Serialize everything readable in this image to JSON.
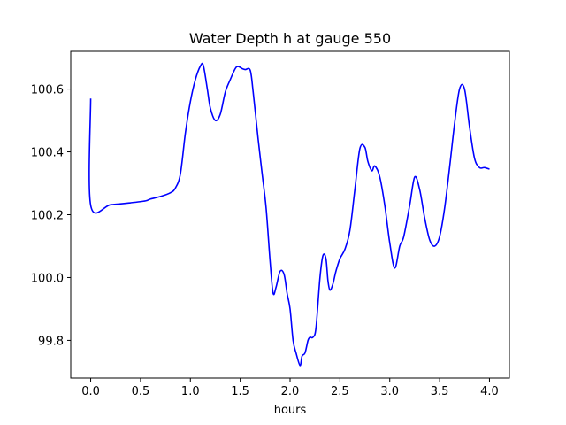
{
  "chart_data": {
    "type": "line",
    "title": "Water Depth h at gauge 550",
    "xlabel": "hours",
    "ylabel": "",
    "xlim": [
      -0.2,
      4.2
    ],
    "ylim": [
      99.68,
      100.72
    ],
    "x_ticks": [
      0.0,
      0.5,
      1.0,
      1.5,
      2.0,
      2.5,
      3.0,
      3.5,
      4.0
    ],
    "x_tick_labels": [
      "0.0",
      "0.5",
      "1.0",
      "1.5",
      "2.0",
      "2.5",
      "3.0",
      "3.5",
      "4.0"
    ],
    "y_ticks": [
      99.8,
      100.0,
      100.2,
      100.4,
      100.6
    ],
    "y_tick_labels": [
      "99.8",
      "100.0",
      "100.2",
      "100.4",
      "100.6"
    ],
    "grid": false,
    "series": [
      {
        "color": "#0000ff",
        "x": [
          0.0,
          0.0,
          0.2,
          0.4,
          0.55,
          0.6,
          0.7,
          0.8,
          0.85,
          0.9,
          0.95,
          1.0,
          1.05,
          1.1,
          1.13,
          1.17,
          1.2,
          1.25,
          1.3,
          1.35,
          1.4,
          1.45,
          1.48,
          1.52,
          1.55,
          1.6,
          1.63,
          1.68,
          1.72,
          1.76,
          1.8,
          1.83,
          1.86,
          1.9,
          1.94,
          1.97,
          2.0,
          2.03,
          2.06,
          2.1,
          2.12,
          2.15,
          2.18,
          2.2,
          2.23,
          2.26,
          2.3,
          2.33,
          2.36,
          2.38,
          2.4,
          2.43,
          2.46,
          2.5,
          2.55,
          2.6,
          2.65,
          2.7,
          2.75,
          2.78,
          2.82,
          2.85,
          2.9,
          2.95,
          3.0,
          3.05,
          3.1,
          3.14,
          3.2,
          3.25,
          3.3,
          3.35,
          3.4,
          3.45,
          3.5,
          3.55,
          3.6,
          3.65,
          3.7,
          3.75,
          3.8,
          3.85,
          3.9,
          3.95,
          4.0
        ],
        "y": [
          100.57,
          100.23,
          100.232,
          100.238,
          100.244,
          100.25,
          100.258,
          100.27,
          100.285,
          100.33,
          100.46,
          100.56,
          100.63,
          100.673,
          100.675,
          100.6,
          100.54,
          100.5,
          100.52,
          100.59,
          100.63,
          100.665,
          100.672,
          100.665,
          100.662,
          100.66,
          100.59,
          100.44,
          100.33,
          100.22,
          100.05,
          99.95,
          99.97,
          100.02,
          100.01,
          99.95,
          99.9,
          99.8,
          99.76,
          99.72,
          99.75,
          99.76,
          99.8,
          99.81,
          99.81,
          99.84,
          100.0,
          100.07,
          100.06,
          99.99,
          99.96,
          99.98,
          100.02,
          100.06,
          100.09,
          100.15,
          100.28,
          100.41,
          100.415,
          100.37,
          100.34,
          100.355,
          100.32,
          100.23,
          100.11,
          100.03,
          100.1,
          100.13,
          100.23,
          100.32,
          100.28,
          100.19,
          100.12,
          100.1,
          100.13,
          100.22,
          100.35,
          100.49,
          100.6,
          100.6,
          100.48,
          100.38,
          100.35,
          100.35,
          100.345
        ]
      }
    ]
  }
}
